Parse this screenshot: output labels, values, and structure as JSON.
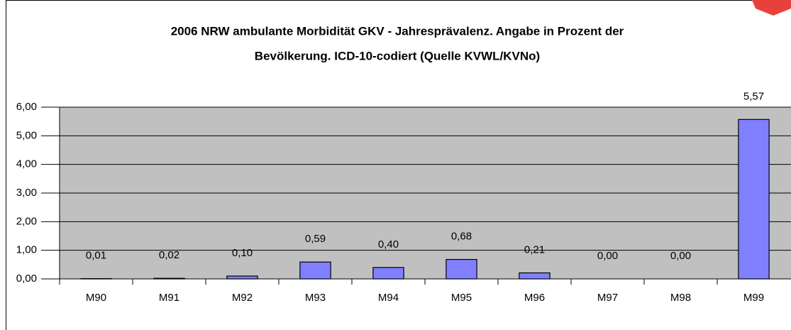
{
  "chart_data": {
    "type": "bar",
    "title": "2006 NRW ambulante Morbidität GKV - Jahresprävalenz. Angabe in Prozent der",
    "subtitle": "Bevölkerung. ICD-10-codiert (Quelle KVWL/KVNo)",
    "categories": [
      "M90",
      "M91",
      "M92",
      "M93",
      "M94",
      "M95",
      "M96",
      "M97",
      "M98",
      "M99"
    ],
    "values": [
      0.01,
      0.02,
      0.1,
      0.59,
      0.4,
      0.68,
      0.21,
      0.0,
      0.0,
      5.57
    ],
    "value_labels": [
      "0,01",
      "0,02",
      "0,10",
      "0,59",
      "0,40",
      "0,68",
      "0,21",
      "0,00",
      "0,00",
      "5,57"
    ],
    "color": "#8080ff",
    "ylim": [
      0,
      6
    ],
    "yticks": [
      {
        "value": 0,
        "label": "0,00"
      },
      {
        "value": 1,
        "label": "1,00"
      },
      {
        "value": 2,
        "label": "2,00"
      },
      {
        "value": 3,
        "label": "3,00"
      },
      {
        "value": 4,
        "label": "4,00"
      },
      {
        "value": 5,
        "label": "5,00"
      },
      {
        "value": 6,
        "label": "6,00"
      }
    ],
    "grid": true
  }
}
